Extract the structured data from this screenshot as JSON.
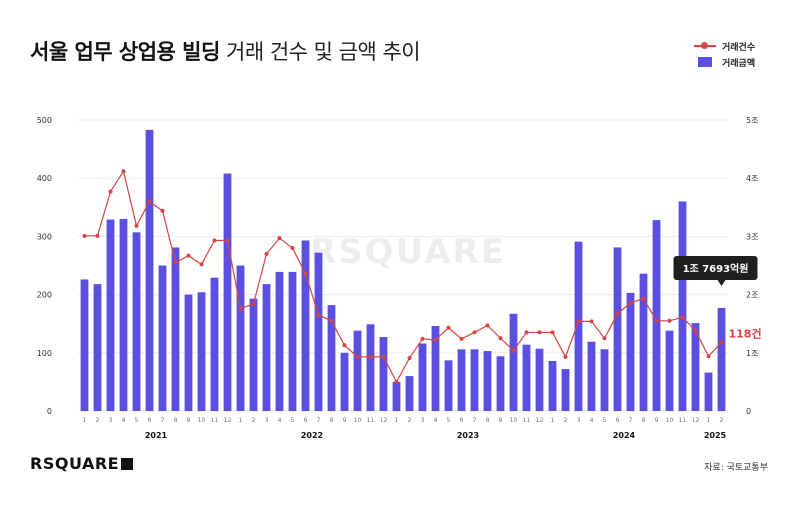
{
  "title": {
    "bold": "서울 업무 상업용 빌딩",
    "light": "거래 건수 및 금액 추이"
  },
  "legend": [
    {
      "label": "거래건수",
      "type": "line",
      "color": "#d64545"
    },
    {
      "label": "거래금액",
      "type": "bar",
      "color": "#5a4fe0"
    }
  ],
  "watermark": "RSQUARE",
  "logo": "RSQUARE",
  "source": "자료: 국토교통부",
  "callouts": {
    "amount": "1조 7693억원",
    "count": "118건"
  },
  "chart_data": {
    "type": "bar",
    "x_ticks": [
      "1",
      "2",
      "3",
      "4",
      "5",
      "6",
      "7",
      "8",
      "9",
      "10",
      "11",
      "12",
      "1",
      "2",
      "3",
      "4",
      "5",
      "6",
      "7",
      "8",
      "9",
      "10",
      "11",
      "12",
      "1",
      "2",
      "3",
      "4",
      "5",
      "6",
      "7",
      "8",
      "9",
      "10",
      "11",
      "12",
      "1",
      "2",
      "3",
      "4",
      "5",
      "6",
      "7",
      "8",
      "9",
      "10",
      "11",
      "12",
      "1",
      "2"
    ],
    "year_labels": [
      {
        "label": "2021",
        "start": 0,
        "end": 11
      },
      {
        "label": "2022",
        "start": 12,
        "end": 23
      },
      {
        "label": "2023",
        "start": 24,
        "end": 35
      },
      {
        "label": "2024",
        "start": 36,
        "end": 47
      },
      {
        "label": "2025",
        "start": 48,
        "end": 49
      }
    ],
    "left_axis": {
      "ticks": [
        "0",
        "100",
        "200",
        "300",
        "400",
        "500"
      ],
      "ylim": [
        0,
        500
      ]
    },
    "right_axis": {
      "ticks": [
        "0",
        "1조",
        "2조",
        "3조",
        "4조",
        "5조"
      ],
      "ylim": [
        0,
        5
      ]
    },
    "grid": true,
    "series": [
      {
        "name": "거래금액",
        "type": "bar",
        "axis": "right",
        "color": "#5a4fe0",
        "values": [
          2.26,
          2.18,
          3.29,
          3.3,
          3.07,
          4.83,
          2.5,
          2.81,
          2.0,
          2.04,
          2.29,
          4.08,
          2.5,
          1.93,
          2.18,
          2.39,
          2.39,
          2.93,
          2.72,
          1.82,
          1.0,
          1.38,
          1.49,
          1.27,
          0.5,
          0.6,
          1.16,
          1.46,
          0.87,
          1.06,
          1.06,
          1.03,
          0.94,
          1.67,
          1.14,
          1.07,
          0.86,
          0.72,
          2.91,
          1.19,
          1.06,
          2.81,
          2.03,
          2.36,
          3.28,
          1.38,
          3.6,
          1.51,
          0.66,
          1.7693
        ]
      },
      {
        "name": "거래건수",
        "type": "line",
        "axis": "left",
        "color": "#d64545",
        "values": [
          301,
          301,
          377,
          412,
          318,
          360,
          344,
          255,
          267,
          252,
          293,
          293,
          176,
          184,
          270,
          297,
          280,
          236,
          165,
          155,
          113,
          93,
          93,
          93,
          50,
          91,
          124,
          122,
          143,
          124,
          135,
          147,
          125,
          104,
          135,
          135,
          135,
          93,
          154,
          154,
          125,
          167,
          186,
          193,
          155,
          155,
          161,
          138,
          94,
          118
        ]
      }
    ]
  }
}
